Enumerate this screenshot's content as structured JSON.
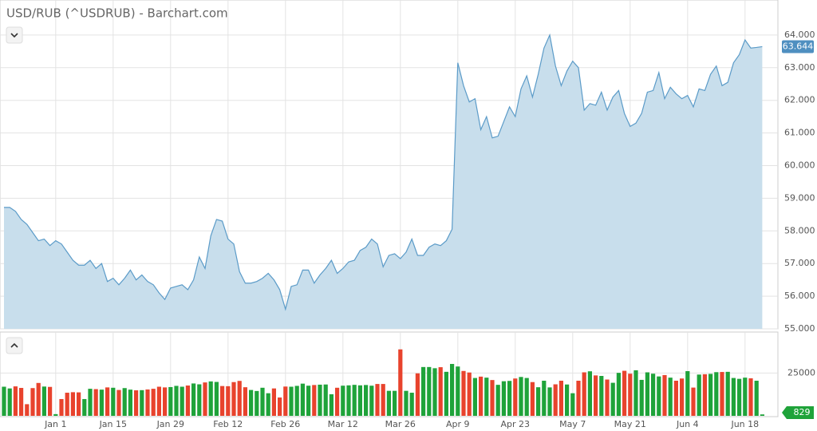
{
  "chart_data": [
    {
      "type": "area",
      "title": "USD/RUB (^USDRUB) - Barchart.com",
      "series": [
        {
          "name": "USDRUB",
          "color": "#5b9bc8",
          "fill": "#c8deec",
          "values": [
            58.72,
            58.72,
            58.6,
            58.35,
            58.2,
            57.95,
            57.7,
            57.75,
            57.55,
            57.7,
            57.6,
            57.35,
            57.1,
            56.95,
            56.95,
            57.1,
            56.85,
            57.0,
            56.45,
            56.55,
            56.35,
            56.55,
            56.8,
            56.5,
            56.65,
            56.45,
            56.35,
            56.1,
            55.9,
            56.25,
            56.3,
            56.35,
            56.2,
            56.5,
            57.2,
            56.85,
            57.85,
            58.35,
            58.3,
            57.75,
            57.6,
            56.75,
            56.4,
            56.4,
            56.45,
            56.55,
            56.7,
            56.5,
            56.2,
            55.6,
            56.3,
            56.35,
            56.8,
            56.8,
            56.4,
            56.65,
            56.85,
            57.1,
            56.7,
            56.85,
            57.05,
            57.1,
            57.4,
            57.5,
            57.75,
            57.6,
            56.9,
            57.25,
            57.3,
            57.15,
            57.35,
            57.75,
            57.25,
            57.25,
            57.5,
            57.6,
            57.55,
            57.7,
            58.05,
            63.15,
            62.45,
            61.95,
            62.05,
            61.1,
            61.5,
            60.85,
            60.9,
            61.35,
            61.8,
            61.5,
            62.35,
            62.75,
            62.1,
            62.8,
            63.6,
            64.0,
            63.05,
            62.45,
            62.9,
            63.2,
            63.0,
            61.7,
            61.9,
            61.85,
            62.25,
            61.7,
            62.1,
            62.3,
            61.6,
            61.2,
            61.3,
            61.6,
            62.25,
            62.3,
            62.85,
            62.05,
            62.4,
            62.2,
            62.05,
            62.15,
            61.8,
            62.35,
            62.3,
            62.8,
            63.05,
            62.45,
            62.55,
            63.15,
            63.4,
            63.85,
            63.6,
            63.62,
            63.644
          ]
        }
      ],
      "ylim": [
        55,
        65
      ],
      "yticks": [
        {
          "value": 55,
          "label": "55.000"
        },
        {
          "value": 56,
          "label": "56.000"
        },
        {
          "value": 57,
          "label": "57.000"
        },
        {
          "value": 58,
          "label": "58.000"
        },
        {
          "value": 59,
          "label": "59.000"
        },
        {
          "value": 60,
          "label": "60.000"
        },
        {
          "value": 61,
          "label": "61.000"
        },
        {
          "value": 62,
          "label": "62.000"
        },
        {
          "value": 63,
          "label": "63.000"
        },
        {
          "value": 64,
          "label": "64.000"
        }
      ],
      "grid": true
    },
    {
      "type": "bar",
      "up_color": "#1fa33a",
      "down_color": "#e8432d",
      "categories": [
        null,
        null,
        null,
        null,
        null,
        null,
        null,
        null,
        null,
        "Jan 1",
        null,
        null,
        null,
        null,
        null,
        null,
        null,
        null,
        null,
        "Jan 15",
        null,
        null,
        null,
        null,
        null,
        null,
        null,
        null,
        null,
        "Jan 29",
        null,
        null,
        null,
        null,
        null,
        null,
        null,
        null,
        null,
        "Feb 12",
        null,
        null,
        null,
        null,
        null,
        null,
        null,
        null,
        null,
        "Feb 26",
        null,
        null,
        null,
        null,
        null,
        null,
        null,
        null,
        null,
        "Mar 12",
        null,
        null,
        null,
        null,
        null,
        null,
        null,
        null,
        null,
        "Mar 26",
        null,
        null,
        null,
        null,
        null,
        null,
        null,
        null,
        null,
        "Apr 9",
        null,
        null,
        null,
        null,
        null,
        null,
        null,
        null,
        null,
        "Apr 23",
        null,
        null,
        null,
        null,
        null,
        null,
        null,
        null,
        null,
        "May 7",
        null,
        null,
        null,
        null,
        null,
        null,
        null,
        null,
        null,
        "May 21",
        null,
        null,
        null,
        null,
        null,
        null,
        null,
        null,
        null,
        "Jun 4",
        null,
        null,
        null,
        null,
        null,
        null,
        null,
        null,
        null,
        "Jun 18",
        null,
        null,
        null
      ],
      "values": [
        17000,
        16000,
        17200,
        16300,
        6800,
        16200,
        19200,
        17100,
        16900,
        1000,
        9800,
        13500,
        13800,
        13700,
        9800,
        15800,
        15600,
        15300,
        16600,
        16400,
        15100,
        16200,
        15300,
        14900,
        15000,
        15400,
        15800,
        17000,
        16600,
        16800,
        17500,
        17000,
        17700,
        18900,
        18400,
        19500,
        20100,
        19800,
        17400,
        17300,
        19700,
        20400,
        16700,
        15100,
        14500,
        16400,
        13200,
        16000,
        10700,
        17100,
        17000,
        17500,
        18800,
        17600,
        18000,
        18200,
        18300,
        12600,
        16400,
        17600,
        17800,
        18100,
        17800,
        18000,
        17600,
        18600,
        18600,
        14600,
        14600,
        38800,
        14600,
        13500,
        24800,
        28500,
        28500,
        27800,
        28400,
        25700,
        30300,
        28800,
        26200,
        25300,
        22100,
        22900,
        22300,
        20900,
        18100,
        20200,
        20400,
        21800,
        22700,
        22100,
        19700,
        16700,
        20500,
        16600,
        18400,
        20500,
        18300,
        13200,
        20500,
        25400,
        26000,
        23600,
        23300,
        21200,
        19300,
        25100,
        26300,
        24600,
        26600,
        21000,
        25400,
        24600,
        23000,
        23800,
        22300,
        20500,
        21800,
        26100,
        16500,
        24100,
        24300,
        24500,
        25500,
        25600,
        25700,
        22100,
        21600,
        22300,
        21900,
        20500,
        829
      ],
      "ylim": [
        0,
        48000
      ],
      "yticks": [
        25000
      ],
      "grid": true
    }
  ]
}
